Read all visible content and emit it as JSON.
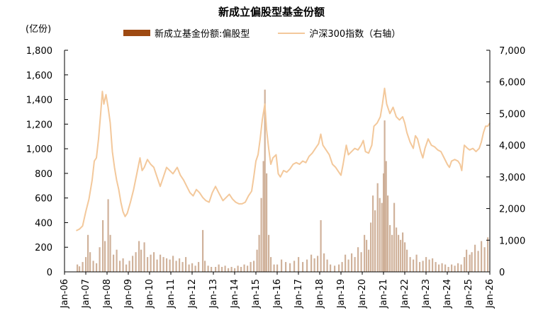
{
  "chart_data": {
    "type": "bar+line",
    "title": "新成立偏股型基金份额",
    "left_unit": "(亿份)",
    "legend": {
      "position": "top",
      "items": [
        "新成立基金份额:偏股型",
        "沪深300指数（右轴）"
      ]
    },
    "x_ticks": [
      "Jan-06",
      "Jan-07",
      "Jan-08",
      "Jan-09",
      "Jan-10",
      "Jan-11",
      "Jan-12",
      "Jan-13",
      "Jan-14",
      "Jan-15",
      "Jan-16",
      "Jan-17",
      "Jan-18",
      "Jan-19",
      "Jan-20",
      "Jan-21",
      "Jan-22",
      "Jan-23",
      "Jan-24",
      "Jan-25",
      "Jan-26"
    ],
    "y_left": {
      "range": [
        0,
        1800
      ],
      "ticks": [
        "0",
        "200",
        "400",
        "600",
        "800",
        "1,000",
        "1,200",
        "1,400",
        "1,600",
        "1,800"
      ]
    },
    "y_right": {
      "range": [
        0,
        7000
      ],
      "ticks": [
        "0",
        "1,000",
        "2,000",
        "3,000",
        "4,000",
        "5,000",
        "6,000",
        "7,000"
      ]
    },
    "grid": false,
    "series": [
      {
        "name": "新成立基金份额:偏股型",
        "type": "bar",
        "axis": "left",
        "color": "#c8a489",
        "points": [
          [
            2006.6,
            60
          ],
          [
            2006.7,
            45
          ],
          [
            2006.85,
            80
          ],
          [
            2007.0,
            120
          ],
          [
            2007.1,
            300
          ],
          [
            2007.2,
            160
          ],
          [
            2007.35,
            90
          ],
          [
            2007.5,
            70
          ],
          [
            2007.65,
            200
          ],
          [
            2007.8,
            420
          ],
          [
            2007.9,
            250
          ],
          [
            2008.05,
            590
          ],
          [
            2008.15,
            300
          ],
          [
            2008.3,
            140
          ],
          [
            2008.45,
            180
          ],
          [
            2008.6,
            90
          ],
          [
            2008.75,
            110
          ],
          [
            2008.9,
            60
          ],
          [
            2009.05,
            90
          ],
          [
            2009.2,
            130
          ],
          [
            2009.35,
            160
          ],
          [
            2009.5,
            250
          ],
          [
            2009.6,
            180
          ],
          [
            2009.75,
            240
          ],
          [
            2009.9,
            120
          ],
          [
            2010.05,
            140
          ],
          [
            2010.2,
            160
          ],
          [
            2010.35,
            100
          ],
          [
            2010.5,
            140
          ],
          [
            2010.65,
            120
          ],
          [
            2010.8,
            110
          ],
          [
            2010.95,
            100
          ],
          [
            2011.1,
            130
          ],
          [
            2011.25,
            90
          ],
          [
            2011.4,
            110
          ],
          [
            2011.55,
            80
          ],
          [
            2011.7,
            120
          ],
          [
            2011.85,
            60
          ],
          [
            2012.0,
            70
          ],
          [
            2012.15,
            50
          ],
          [
            2012.3,
            80
          ],
          [
            2012.5,
            340
          ],
          [
            2012.6,
            90
          ],
          [
            2012.75,
            50
          ],
          [
            2012.9,
            40
          ],
          [
            2013.1,
            40
          ],
          [
            2013.25,
            60
          ],
          [
            2013.4,
            40
          ],
          [
            2013.55,
            50
          ],
          [
            2013.7,
            30
          ],
          [
            2013.85,
            40
          ],
          [
            2014.0,
            30
          ],
          [
            2014.15,
            50
          ],
          [
            2014.3,
            40
          ],
          [
            2014.45,
            60
          ],
          [
            2014.6,
            50
          ],
          [
            2014.75,
            80
          ],
          [
            2014.9,
            90
          ],
          [
            2015.05,
            180
          ],
          [
            2015.15,
            300
          ],
          [
            2015.25,
            600
          ],
          [
            2015.35,
            900
          ],
          [
            2015.42,
            1480
          ],
          [
            2015.5,
            800
          ],
          [
            2015.6,
            300
          ],
          [
            2015.7,
            120
          ],
          [
            2015.85,
            60
          ],
          [
            2016.0,
            60
          ],
          [
            2016.2,
            100
          ],
          [
            2016.4,
            80
          ],
          [
            2016.6,
            70
          ],
          [
            2016.8,
            90
          ],
          [
            2017.0,
            120
          ],
          [
            2017.2,
            80
          ],
          [
            2017.4,
            100
          ],
          [
            2017.6,
            140
          ],
          [
            2017.75,
            110
          ],
          [
            2017.9,
            130
          ],
          [
            2018.05,
            420
          ],
          [
            2018.2,
            150
          ],
          [
            2018.35,
            100
          ],
          [
            2018.5,
            60
          ],
          [
            2018.7,
            50
          ],
          [
            2018.9,
            60
          ],
          [
            2019.05,
            80
          ],
          [
            2019.2,
            140
          ],
          [
            2019.35,
            100
          ],
          [
            2019.5,
            150
          ],
          [
            2019.65,
            120
          ],
          [
            2019.8,
            200
          ],
          [
            2019.95,
            160
          ],
          [
            2020.1,
            300
          ],
          [
            2020.2,
            260
          ],
          [
            2020.3,
            180
          ],
          [
            2020.4,
            400
          ],
          [
            2020.5,
            620
          ],
          [
            2020.6,
            500
          ],
          [
            2020.72,
            720
          ],
          [
            2020.82,
            600
          ],
          [
            2020.92,
            560
          ],
          [
            2021.0,
            800
          ],
          [
            2021.05,
            1230
          ],
          [
            2021.12,
            900
          ],
          [
            2021.2,
            620
          ],
          [
            2021.3,
            380
          ],
          [
            2021.4,
            300
          ],
          [
            2021.5,
            560
          ],
          [
            2021.6,
            360
          ],
          [
            2021.7,
            300
          ],
          [
            2021.8,
            260
          ],
          [
            2021.9,
            320
          ],
          [
            2022.0,
            240
          ],
          [
            2022.1,
            180
          ],
          [
            2022.25,
            120
          ],
          [
            2022.4,
            100
          ],
          [
            2022.55,
            140
          ],
          [
            2022.7,
            80
          ],
          [
            2022.85,
            90
          ],
          [
            2023.0,
            120
          ],
          [
            2023.15,
            100
          ],
          [
            2023.3,
            110
          ],
          [
            2023.45,
            80
          ],
          [
            2023.6,
            60
          ],
          [
            2023.75,
            70
          ],
          [
            2023.9,
            60
          ],
          [
            2024.05,
            40
          ],
          [
            2024.2,
            60
          ],
          [
            2024.35,
            50
          ],
          [
            2024.5,
            70
          ],
          [
            2024.65,
            60
          ],
          [
            2024.8,
            120
          ],
          [
            2024.9,
            180
          ],
          [
            2025.05,
            140
          ],
          [
            2025.15,
            160
          ],
          [
            2025.3,
            220
          ],
          [
            2025.45,
            170
          ],
          [
            2025.6,
            250
          ],
          [
            2025.75,
            200
          ],
          [
            2025.9,
            280
          ]
        ]
      },
      {
        "name": "沪深300指数（右轴）",
        "type": "line",
        "axis": "right",
        "color": "#f3c89b",
        "points": [
          [
            2006.55,
            1300
          ],
          [
            2006.7,
            1350
          ],
          [
            2006.85,
            1450
          ],
          [
            2007.0,
            1900
          ],
          [
            2007.15,
            2300
          ],
          [
            2007.3,
            2900
          ],
          [
            2007.4,
            3500
          ],
          [
            2007.5,
            3600
          ],
          [
            2007.6,
            4200
          ],
          [
            2007.7,
            5000
          ],
          [
            2007.78,
            5700
          ],
          [
            2007.85,
            5300
          ],
          [
            2007.95,
            5600
          ],
          [
            2008.05,
            5200
          ],
          [
            2008.15,
            4700
          ],
          [
            2008.25,
            3800
          ],
          [
            2008.35,
            3300
          ],
          [
            2008.45,
            2900
          ],
          [
            2008.55,
            2600
          ],
          [
            2008.65,
            2200
          ],
          [
            2008.75,
            1900
          ],
          [
            2008.85,
            1750
          ],
          [
            2008.95,
            1850
          ],
          [
            2009.1,
            2200
          ],
          [
            2009.25,
            2600
          ],
          [
            2009.4,
            3100
          ],
          [
            2009.55,
            3600
          ],
          [
            2009.65,
            3200
          ],
          [
            2009.75,
            3300
          ],
          [
            2009.9,
            3550
          ],
          [
            2010.05,
            3400
          ],
          [
            2010.2,
            3300
          ],
          [
            2010.35,
            3000
          ],
          [
            2010.5,
            2700
          ],
          [
            2010.65,
            3000
          ],
          [
            2010.8,
            3300
          ],
          [
            2010.95,
            3200
          ],
          [
            2011.1,
            3100
          ],
          [
            2011.3,
            3300
          ],
          [
            2011.45,
            3050
          ],
          [
            2011.6,
            2900
          ],
          [
            2011.75,
            2700
          ],
          [
            2011.9,
            2500
          ],
          [
            2012.05,
            2400
          ],
          [
            2012.2,
            2600
          ],
          [
            2012.35,
            2500
          ],
          [
            2012.5,
            2350
          ],
          [
            2012.65,
            2250
          ],
          [
            2012.8,
            2200
          ],
          [
            2012.95,
            2500
          ],
          [
            2013.1,
            2700
          ],
          [
            2013.25,
            2500
          ],
          [
            2013.45,
            2250
          ],
          [
            2013.6,
            2350
          ],
          [
            2013.75,
            2450
          ],
          [
            2013.9,
            2300
          ],
          [
            2014.05,
            2200
          ],
          [
            2014.2,
            2150
          ],
          [
            2014.35,
            2150
          ],
          [
            2014.5,
            2200
          ],
          [
            2014.65,
            2400
          ],
          [
            2014.8,
            2550
          ],
          [
            2014.9,
            3000
          ],
          [
            2015.0,
            3500
          ],
          [
            2015.1,
            3700
          ],
          [
            2015.2,
            4200
          ],
          [
            2015.3,
            4800
          ],
          [
            2015.42,
            5300
          ],
          [
            2015.5,
            4500
          ],
          [
            2015.6,
            3900
          ],
          [
            2015.7,
            3400
          ],
          [
            2015.8,
            3600
          ],
          [
            2015.95,
            3700
          ],
          [
            2016.05,
            3100
          ],
          [
            2016.15,
            3000
          ],
          [
            2016.3,
            3200
          ],
          [
            2016.45,
            3150
          ],
          [
            2016.6,
            3250
          ],
          [
            2016.75,
            3400
          ],
          [
            2016.9,
            3450
          ],
          [
            2017.05,
            3400
          ],
          [
            2017.2,
            3500
          ],
          [
            2017.35,
            3450
          ],
          [
            2017.5,
            3650
          ],
          [
            2017.65,
            3750
          ],
          [
            2017.8,
            3900
          ],
          [
            2017.95,
            4050
          ],
          [
            2018.05,
            4350
          ],
          [
            2018.15,
            4000
          ],
          [
            2018.3,
            3850
          ],
          [
            2018.45,
            3700
          ],
          [
            2018.6,
            3400
          ],
          [
            2018.75,
            3300
          ],
          [
            2018.9,
            3150
          ],
          [
            2019.0,
            3050
          ],
          [
            2019.1,
            3400
          ],
          [
            2019.25,
            4000
          ],
          [
            2019.35,
            3700
          ],
          [
            2019.5,
            3800
          ],
          [
            2019.65,
            3900
          ],
          [
            2019.8,
            3850
          ],
          [
            2019.95,
            4000
          ],
          [
            2020.05,
            4150
          ],
          [
            2020.15,
            3800
          ],
          [
            2020.3,
            3750
          ],
          [
            2020.45,
            4000
          ],
          [
            2020.55,
            4600
          ],
          [
            2020.7,
            4700
          ],
          [
            2020.85,
            4900
          ],
          [
            2020.95,
            5300
          ],
          [
            2021.05,
            5800
          ],
          [
            2021.15,
            5300
          ],
          [
            2021.3,
            5000
          ],
          [
            2021.45,
            5200
          ],
          [
            2021.6,
            4900
          ],
          [
            2021.75,
            4800
          ],
          [
            2021.9,
            4900
          ],
          [
            2022.0,
            4700
          ],
          [
            2022.1,
            4400
          ],
          [
            2022.25,
            4100
          ],
          [
            2022.4,
            3900
          ],
          [
            2022.5,
            4300
          ],
          [
            2022.6,
            4200
          ],
          [
            2022.75,
            3800
          ],
          [
            2022.85,
            3600
          ],
          [
            2022.95,
            3900
          ],
          [
            2023.1,
            4200
          ],
          [
            2023.25,
            4000
          ],
          [
            2023.4,
            3950
          ],
          [
            2023.55,
            3850
          ],
          [
            2023.7,
            3800
          ],
          [
            2023.85,
            3600
          ],
          [
            2024.0,
            3400
          ],
          [
            2024.1,
            3300
          ],
          [
            2024.2,
            3500
          ],
          [
            2024.35,
            3550
          ],
          [
            2024.5,
            3500
          ],
          [
            2024.6,
            3400
          ],
          [
            2024.68,
            3200
          ],
          [
            2024.75,
            3700
          ],
          [
            2024.8,
            4000
          ],
          [
            2024.95,
            3900
          ],
          [
            2025.05,
            3850
          ],
          [
            2025.2,
            3900
          ],
          [
            2025.35,
            3800
          ],
          [
            2025.5,
            3900
          ],
          [
            2025.6,
            4100
          ],
          [
            2025.7,
            4400
          ],
          [
            2025.8,
            4600
          ],
          [
            2025.9,
            4600
          ],
          [
            2026.0,
            4700
          ]
        ]
      }
    ]
  }
}
